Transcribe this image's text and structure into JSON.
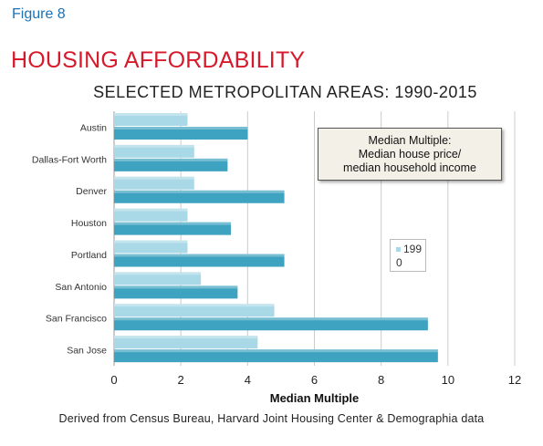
{
  "figure_label": "Figure 8",
  "title": "HOUSING AFFORDABILITY",
  "subtitle": "SELECTED METROPOLITAN AREAS: 1990-2015",
  "note_lines": [
    "Median Multiple:",
    "Median house price/",
    "median household income"
  ],
  "legend_lines": [
    "199",
    "0"
  ],
  "source": "Derived from Census Bureau, Harvard Joint Housing Center & Demographia data",
  "colors": {
    "series_1990": "#a9d8e6",
    "series_2015": "#3da3c0",
    "grid": "#cccccc"
  },
  "chart_data": {
    "type": "bar",
    "orientation": "horizontal",
    "categories": [
      "Austin",
      "Dallas-Fort Worth",
      "Denver",
      "Houston",
      "Portland",
      "San Antonio",
      "San Francisco",
      "San Jose"
    ],
    "series": [
      {
        "name": "1990",
        "values": [
          2.2,
          2.4,
          2.4,
          2.2,
          2.2,
          2.6,
          4.8,
          4.3
        ]
      },
      {
        "values": [
          4.0,
          3.4,
          5.1,
          3.5,
          5.1,
          3.7,
          9.4,
          9.7
        ]
      }
    ],
    "xlabel": "Median Multiple",
    "xlim": [
      0,
      12
    ],
    "xticks": [
      "0",
      "2",
      "4",
      "6",
      "8",
      "10",
      "12"
    ],
    "grid": true,
    "legend_position": "right"
  }
}
